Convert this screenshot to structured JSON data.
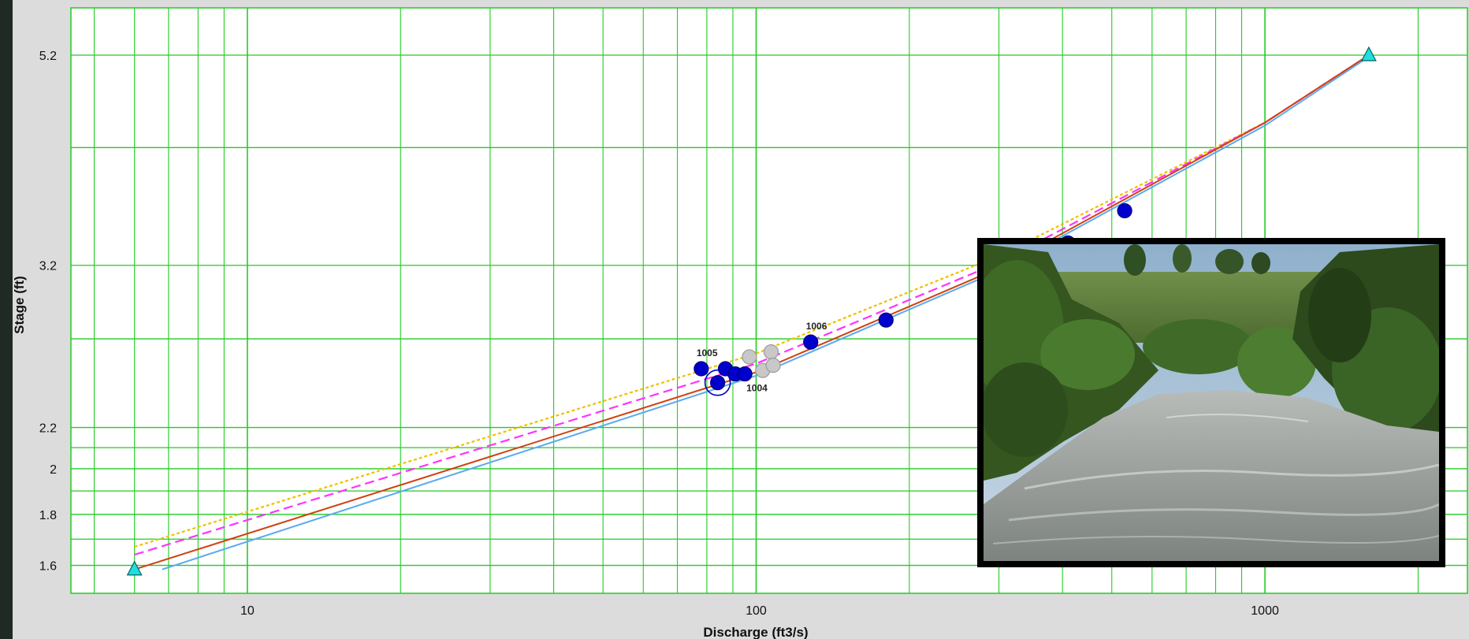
{
  "chart_data": {
    "type": "scatter",
    "title": "",
    "xlabel": "Discharge (ft3/s)",
    "ylabel": "Stage (ft)",
    "x_scale": "log",
    "y_scale": "log",
    "xlim": [
      4.5,
      2500
    ],
    "ylim": [
      1.5,
      5.8
    ],
    "x_tick_labels": [
      {
        "value": 10,
        "label": "10"
      },
      {
        "value": 100,
        "label": "100"
      },
      {
        "value": 1000,
        "label": "1000"
      }
    ],
    "y_tick_labels": [
      {
        "value": 1.6,
        "label": "1.6"
      },
      {
        "value": 1.8,
        "label": "1.8"
      },
      {
        "value": 2,
        "label": "2"
      },
      {
        "value": 2.2,
        "label": "2.2"
      },
      {
        "value": 3.2,
        "label": "3.2"
      },
      {
        "value": 5.2,
        "label": "5.2"
      }
    ],
    "grid": true,
    "grid_color": "#22cc22",
    "plot_background": "#ffffff",
    "curves": [
      {
        "style": "dotted",
        "color": "#f0c000",
        "points": [
          [
            6,
            1.67
          ],
          [
            100,
            2.61
          ],
          [
            300,
            3.27
          ],
          [
            1000,
            4.45
          ],
          [
            1600,
            5.2
          ]
        ]
      },
      {
        "style": "dashed",
        "color": "#ff33ff",
        "points": [
          [
            6,
            1.64
          ],
          [
            100,
            2.55
          ],
          [
            300,
            3.22
          ],
          [
            1000,
            4.45
          ],
          [
            1600,
            5.2
          ]
        ]
      },
      {
        "style": "solid",
        "color": "#d04010",
        "points": [
          [
            6,
            1.585
          ],
          [
            100,
            2.5
          ],
          [
            300,
            3.18
          ],
          [
            1000,
            4.45
          ],
          [
            1600,
            5.2
          ]
        ]
      },
      {
        "style": "solid",
        "color": "#5aaaf0",
        "points": [
          [
            6.8,
            1.585
          ],
          [
            100,
            2.48
          ],
          [
            300,
            3.16
          ],
          [
            1000,
            4.42
          ],
          [
            1600,
            5.18
          ]
        ]
      }
    ],
    "measurements": [
      {
        "x": 78,
        "y": 2.52,
        "color": "#0000cc",
        "label": "1005"
      },
      {
        "x": 84,
        "y": 2.44,
        "color": "#0000cc",
        "label": ""
      },
      {
        "x": 87,
        "y": 2.52,
        "color": "#0000cc",
        "label": ""
      },
      {
        "x": 91,
        "y": 2.49,
        "color": "#0000cc",
        "label": ""
      },
      {
        "x": 95,
        "y": 2.49,
        "color": "#0000cc",
        "label": "1004"
      },
      {
        "x": 128,
        "y": 2.68,
        "color": "#0000cc",
        "label": "1006"
      },
      {
        "x": 180,
        "y": 2.82,
        "color": "#0000cc",
        "label": ""
      },
      {
        "x": 410,
        "y": 3.37,
        "color": "#0000cc",
        "label": ""
      },
      {
        "x": 530,
        "y": 3.63,
        "color": "#0000cc",
        "label": ""
      },
      {
        "x": 97,
        "y": 2.59,
        "color": "#c8c8c8",
        "label": ""
      },
      {
        "x": 107,
        "y": 2.62,
        "color": "#c8c8c8",
        "label": ""
      },
      {
        "x": 103,
        "y": 2.51,
        "color": "#c8c8c8",
        "label": ""
      },
      {
        "x": 108,
        "y": 2.54,
        "color": "#c8c8c8",
        "label": ""
      }
    ],
    "highlighted_point": {
      "x": 84,
      "y": 2.44,
      "color": "#0000cc"
    },
    "endpoints": [
      {
        "x": 6,
        "y": 1.585,
        "color": "#22dddd"
      },
      {
        "x": 1600,
        "y": 5.2,
        "color": "#22dddd"
      }
    ]
  },
  "inset_photo": {
    "description_icon": "river-photo",
    "frame_color": "#000000",
    "sky_color": "#a9c3d8",
    "vegetation_color": "#3f6a2a",
    "water_color": "#8e9490"
  }
}
